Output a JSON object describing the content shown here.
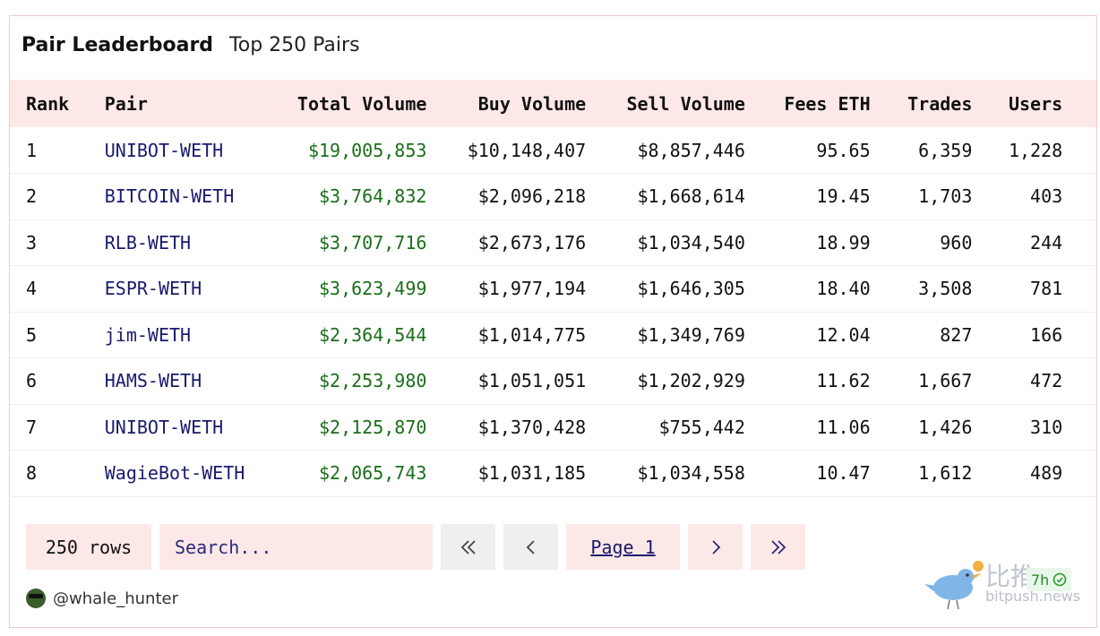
{
  "header": {
    "title": "Pair Leaderboard",
    "subtitle": "Top 250 Pairs"
  },
  "table": {
    "columns": [
      "Rank",
      "Pair",
      "Total Volume",
      "Buy Volume",
      "Sell Volume",
      "Fees ETH",
      "Trades",
      "Users"
    ],
    "rows": [
      {
        "rank": "1",
        "pair": "UNIBOT-WETH",
        "total": "$19,005,853",
        "buy": "$10,148,407",
        "sell": "$8,857,446",
        "fees": "95.65",
        "trades": "6,359",
        "users": "1,228"
      },
      {
        "rank": "2",
        "pair": "BITCOIN-WETH",
        "total": "$3,764,832",
        "buy": "$2,096,218",
        "sell": "$1,668,614",
        "fees": "19.45",
        "trades": "1,703",
        "users": "403"
      },
      {
        "rank": "3",
        "pair": "RLB-WETH",
        "total": "$3,707,716",
        "buy": "$2,673,176",
        "sell": "$1,034,540",
        "fees": "18.99",
        "trades": "960",
        "users": "244"
      },
      {
        "rank": "4",
        "pair": "ESPR-WETH",
        "total": "$3,623,499",
        "buy": "$1,977,194",
        "sell": "$1,646,305",
        "fees": "18.40",
        "trades": "3,508",
        "users": "781"
      },
      {
        "rank": "5",
        "pair": "jim-WETH",
        "total": "$2,364,544",
        "buy": "$1,014,775",
        "sell": "$1,349,769",
        "fees": "12.04",
        "trades": "827",
        "users": "166"
      },
      {
        "rank": "6",
        "pair": "HAMS-WETH",
        "total": "$2,253,980",
        "buy": "$1,051,051",
        "sell": "$1,202,929",
        "fees": "11.62",
        "trades": "1,667",
        "users": "472"
      },
      {
        "rank": "7",
        "pair": "UNIBOT-WETH",
        "total": "$2,125,870",
        "buy": "$1,370,428",
        "sell": "$755,442",
        "fees": "11.06",
        "trades": "1,426",
        "users": "310"
      },
      {
        "rank": "8",
        "pair": "WagieBot-WETH",
        "total": "$2,065,743",
        "buy": "$1,031,185",
        "sell": "$1,034,558",
        "fees": "10.47",
        "trades": "1,612",
        "users": "489"
      }
    ]
  },
  "footer": {
    "rows_label": "250 rows",
    "search_placeholder": "Search...",
    "page_label": "Page 1"
  },
  "author": {
    "handle": "@whale_hunter"
  },
  "watermark": {
    "cn": "比推",
    "url": "bitpush.news",
    "badge": "7h"
  },
  "colors": {
    "accent_bg": "#fde8e8",
    "link": "#1a1a6e",
    "total_volume": "#1a6e1a"
  }
}
